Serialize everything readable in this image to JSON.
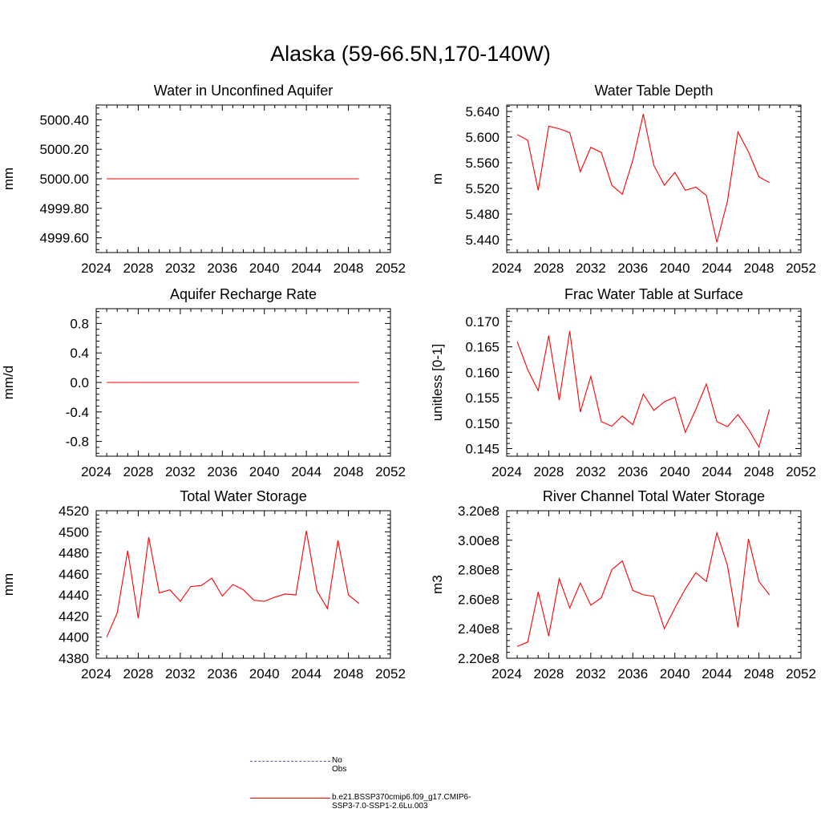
{
  "page": {
    "title": "Alaska (59-66.5N,170-140W)"
  },
  "colors": {
    "model": "#ff0000",
    "obs": "#5a5aa8"
  },
  "legend": {
    "items": [
      {
        "label": "No Obs",
        "style": "dashed"
      },
      {
        "label": "b.e21.BSSP370cmip6.f09_g17.CMIP6-SSP3-7.0-SSP1-2.6Lu.003",
        "style": "solid"
      }
    ]
  },
  "chart_data": [
    {
      "type": "line",
      "title": "Water in Unconfined Aquifer",
      "ylabel": "mm",
      "x": [
        2025,
        2026,
        2027,
        2028,
        2029,
        2030,
        2031,
        2032,
        2033,
        2034,
        2035,
        2036,
        2037,
        2038,
        2039,
        2040,
        2041,
        2042,
        2043,
        2044,
        2045,
        2046,
        2047,
        2048,
        2049
      ],
      "xlim": [
        2024,
        2052
      ],
      "xticks": [
        "2024",
        "2028",
        "2032",
        "2036",
        "2040",
        "2044",
        "2048",
        "2052"
      ],
      "ylim": [
        4999.5,
        5000.5
      ],
      "yticks": [
        "4999.60",
        "4999.80",
        "5000.00",
        "5000.20",
        "5000.40"
      ],
      "ytick_values": [
        4999.6,
        4999.8,
        5000.0,
        5000.2,
        5000.4
      ],
      "series": [
        {
          "values": [
            5000,
            5000,
            5000,
            5000,
            5000,
            5000,
            5000,
            5000,
            5000,
            5000,
            5000,
            5000,
            5000,
            5000,
            5000,
            5000,
            5000,
            5000,
            5000,
            5000,
            5000,
            5000,
            5000,
            5000,
            5000
          ]
        }
      ]
    },
    {
      "type": "line",
      "title": "Water Table Depth",
      "ylabel": "m",
      "x": [
        2025,
        2026,
        2027,
        2028,
        2029,
        2030,
        2031,
        2032,
        2033,
        2034,
        2035,
        2036,
        2037,
        2038,
        2039,
        2040,
        2041,
        2042,
        2043,
        2044,
        2045,
        2046,
        2047,
        2048,
        2049
      ],
      "xlim": [
        2024,
        2052
      ],
      "xticks": [
        "2024",
        "2028",
        "2032",
        "2036",
        "2040",
        "2044",
        "2048",
        "2052"
      ],
      "ylim": [
        5.42,
        5.65
      ],
      "yticks": [
        "5.440",
        "5.480",
        "5.520",
        "5.560",
        "5.600",
        "5.640"
      ],
      "ytick_values": [
        5.44,
        5.48,
        5.52,
        5.56,
        5.6,
        5.64
      ],
      "series": [
        {
          "values": [
            5.604,
            5.595,
            5.517,
            5.617,
            5.613,
            5.607,
            5.546,
            5.584,
            5.576,
            5.525,
            5.511,
            5.564,
            5.636,
            5.556,
            5.525,
            5.545,
            5.517,
            5.522,
            5.509,
            5.436,
            5.5,
            5.608,
            5.577,
            5.538,
            5.529
          ]
        }
      ]
    },
    {
      "type": "line",
      "title": "Aquifer Recharge Rate",
      "ylabel": "mm/d",
      "x": [
        2025,
        2026,
        2027,
        2028,
        2029,
        2030,
        2031,
        2032,
        2033,
        2034,
        2035,
        2036,
        2037,
        2038,
        2039,
        2040,
        2041,
        2042,
        2043,
        2044,
        2045,
        2046,
        2047,
        2048,
        2049
      ],
      "xlim": [
        2024,
        2052
      ],
      "xticks": [
        "2024",
        "2028",
        "2032",
        "2036",
        "2040",
        "2044",
        "2048",
        "2052"
      ],
      "ylim": [
        -1.0,
        1.0
      ],
      "yticks": [
        "-0.8",
        "-0.4",
        "0.0",
        "0.4",
        "0.8"
      ],
      "ytick_values": [
        -0.8,
        -0.4,
        0.0,
        0.4,
        0.8
      ],
      "series": [
        {
          "values": [
            0,
            0,
            0,
            0,
            0,
            0,
            0,
            0,
            0,
            0,
            0,
            0,
            0,
            0,
            0,
            0,
            0,
            0,
            0,
            0,
            0,
            0,
            0,
            0,
            0
          ]
        }
      ]
    },
    {
      "type": "line",
      "title": "Frac Water Table at Surface",
      "ylabel": "unitless [0-1]",
      "x": [
        2025,
        2026,
        2027,
        2028,
        2029,
        2030,
        2031,
        2032,
        2033,
        2034,
        2035,
        2036,
        2037,
        2038,
        2039,
        2040,
        2041,
        2042,
        2043,
        2044,
        2045,
        2046,
        2047,
        2048,
        2049
      ],
      "xlim": [
        2024,
        2052
      ],
      "xticks": [
        "2024",
        "2028",
        "2032",
        "2036",
        "2040",
        "2044",
        "2048",
        "2052"
      ],
      "ylim": [
        0.1435,
        0.1725
      ],
      "yticks": [
        "0.145",
        "0.150",
        "0.155",
        "0.160",
        "0.165",
        "0.170"
      ],
      "ytick_values": [
        0.145,
        0.15,
        0.155,
        0.16,
        0.165,
        0.17
      ],
      "series": [
        {
          "values": [
            0.166,
            0.1605,
            0.1564,
            0.1672,
            0.1545,
            0.1681,
            0.1522,
            0.1592,
            0.1503,
            0.1494,
            0.1514,
            0.1497,
            0.1557,
            0.1525,
            0.1542,
            0.1551,
            0.1482,
            0.1527,
            0.1577,
            0.1503,
            0.1493,
            0.1517,
            0.1488,
            0.1453,
            0.1527
          ]
        }
      ]
    },
    {
      "type": "line",
      "title": "Total Water Storage",
      "ylabel": "mm",
      "x": [
        2025,
        2026,
        2027,
        2028,
        2029,
        2030,
        2031,
        2032,
        2033,
        2034,
        2035,
        2036,
        2037,
        2038,
        2039,
        2040,
        2041,
        2042,
        2043,
        2044,
        2045,
        2046,
        2047,
        2048,
        2049
      ],
      "xlim": [
        2024,
        2052
      ],
      "xticks": [
        "2024",
        "2028",
        "2032",
        "2036",
        "2040",
        "2044",
        "2048",
        "2052"
      ],
      "ylim": [
        4380,
        4520
      ],
      "yticks": [
        "4380",
        "4400",
        "4420",
        "4440",
        "4460",
        "4480",
        "4500",
        "4520"
      ],
      "ytick_values": [
        4380,
        4400,
        4420,
        4440,
        4460,
        4480,
        4500,
        4520
      ],
      "series": [
        {
          "values": [
            4400,
            4423,
            4482,
            4418,
            4495,
            4442,
            4445,
            4434,
            4448,
            4449,
            4456,
            4439,
            4450,
            4445,
            4435,
            4434,
            4438,
            4441,
            4440,
            4501,
            4444,
            4427,
            4492,
            4440,
            4432
          ]
        }
      ]
    },
    {
      "type": "line",
      "title": "River Channel Total Water Storage",
      "ylabel": "m3",
      "x": [
        2025,
        2026,
        2027,
        2028,
        2029,
        2030,
        2031,
        2032,
        2033,
        2034,
        2035,
        2036,
        2037,
        2038,
        2039,
        2040,
        2041,
        2042,
        2043,
        2044,
        2045,
        2046,
        2047,
        2048,
        2049
      ],
      "xlim": [
        2024,
        2052
      ],
      "xticks": [
        "2024",
        "2028",
        "2032",
        "2036",
        "2040",
        "2044",
        "2048",
        "2052"
      ],
      "ylim": [
        220000000.0,
        320000000.0
      ],
      "yticks": [
        "2.20e8",
        "2.40e8",
        "2.60e8",
        "2.80e8",
        "3.00e8",
        "3.20e8"
      ],
      "ytick_values": [
        220000000.0,
        240000000.0,
        260000000.0,
        280000000.0,
        300000000.0,
        320000000.0
      ],
      "series": [
        {
          "values": [
            228000000.0,
            231000000.0,
            265000000.0,
            235000000.0,
            274000000.0,
            254000000.0,
            271000000.0,
            256000000.0,
            261000000.0,
            280000000.0,
            286000000.0,
            266000000.0,
            263000000.0,
            262000000.0,
            240000000.0,
            254000000.0,
            267000000.0,
            278000000.0,
            272000000.0,
            305000000.0,
            283000000.0,
            241000000.0,
            301000000.0,
            272000000.0,
            263000000.0
          ]
        }
      ]
    }
  ]
}
